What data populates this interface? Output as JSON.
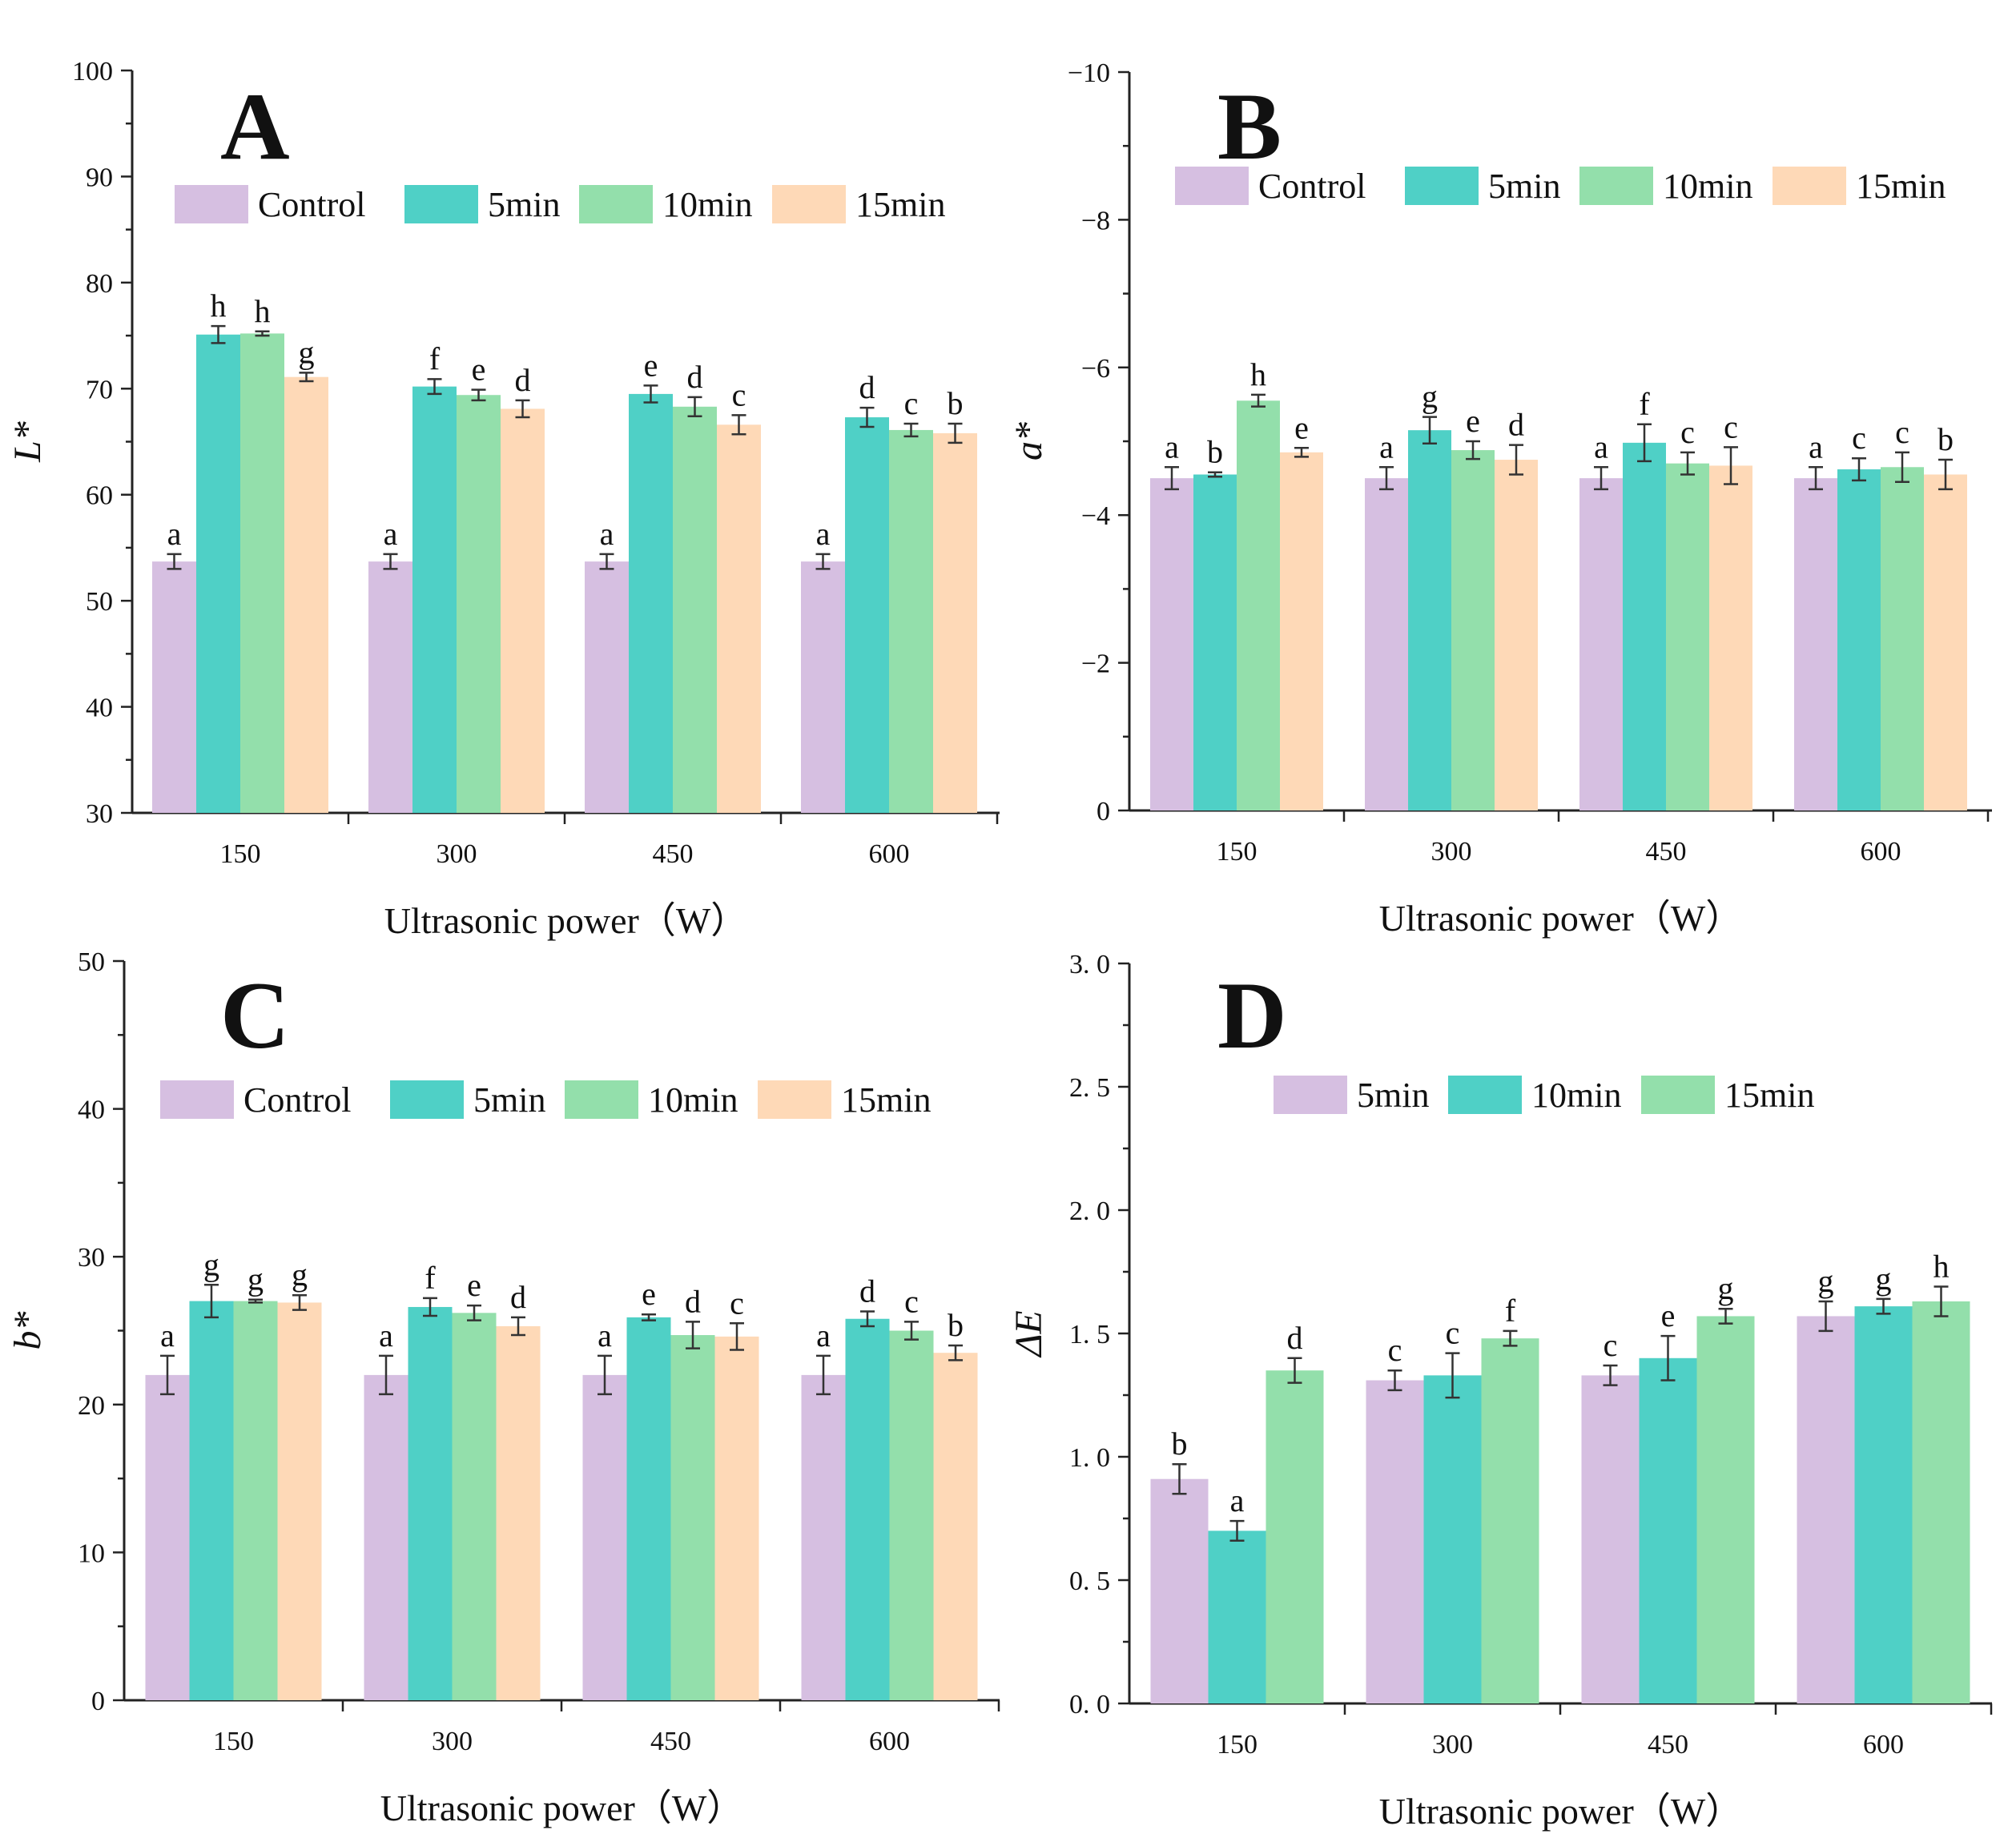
{
  "colors": {
    "Control": "#d6bfe1",
    "5min": "#4fd0c6",
    "10min": "#93dfab",
    "15min": "#fed9b7"
  },
  "chart_data": [
    {
      "type": "bar",
      "panel": "A",
      "title": "A",
      "xlabel": "Ultrasonic power（W）",
      "ylabel": "L*",
      "categories": [
        "150",
        "300",
        "450",
        "600"
      ],
      "ylim": [
        30,
        100
      ],
      "yticks": [
        30,
        40,
        50,
        60,
        70,
        80,
        90,
        100
      ],
      "tick_labels": [
        "30",
        "40",
        "50",
        "60",
        "70",
        "80",
        "90",
        "100"
      ],
      "legend": [
        "Control",
        "5min",
        "10min",
        "15min"
      ],
      "series": [
        {
          "name": "Control",
          "values": [
            53.7,
            53.7,
            53.7,
            53.7
          ],
          "errors": [
            0.7,
            0.7,
            0.7,
            0.7
          ],
          "letters": [
            "a",
            "a",
            "a",
            "a"
          ]
        },
        {
          "name": "5min",
          "values": [
            75.1,
            70.2,
            69.5,
            67.3
          ],
          "errors": [
            0.8,
            0.7,
            0.8,
            0.9
          ],
          "letters": [
            "h",
            "f",
            "e",
            "d"
          ]
        },
        {
          "name": "10min",
          "values": [
            75.2,
            69.4,
            68.3,
            66.1
          ],
          "errors": [
            0.2,
            0.5,
            0.9,
            0.6
          ],
          "letters": [
            "h",
            "e",
            "d",
            "c"
          ]
        },
        {
          "name": "15min",
          "values": [
            71.1,
            68.1,
            66.6,
            65.8
          ],
          "errors": [
            0.4,
            0.8,
            0.9,
            0.9
          ],
          "letters": [
            "g",
            "d",
            "c",
            "b"
          ]
        }
      ]
    },
    {
      "type": "bar",
      "panel": "B",
      "title": "B",
      "xlabel": "Ultrasonic power（W）",
      "ylabel": "a*",
      "categories": [
        "150",
        "300",
        "450",
        "600"
      ],
      "ylim": [
        0,
        -10
      ],
      "yticks": [
        0,
        -2,
        -4,
        -6,
        -8,
        -10
      ],
      "tick_labels": [
        "0",
        "−2",
        "−4",
        "−6",
        "−8",
        "−10"
      ],
      "legend": [
        "Control",
        "5min",
        "10min",
        "15min"
      ],
      "series": [
        {
          "name": "Control",
          "values": [
            -4.5,
            -4.5,
            -4.5,
            -4.5
          ],
          "errors": [
            0.15,
            0.15,
            0.15,
            0.15
          ],
          "letters": [
            "a",
            "a",
            "a",
            "a"
          ]
        },
        {
          "name": "5min",
          "values": [
            -4.55,
            -5.15,
            -4.98,
            -4.62
          ],
          "errors": [
            0.03,
            0.18,
            0.25,
            0.15
          ],
          "letters": [
            "b",
            "g",
            "f",
            "c"
          ]
        },
        {
          "name": "10min",
          "values": [
            -5.55,
            -4.88,
            -4.7,
            -4.65
          ],
          "errors": [
            0.08,
            0.12,
            0.15,
            0.2
          ],
          "letters": [
            "h",
            "e",
            "c",
            "c"
          ]
        },
        {
          "name": "15min",
          "values": [
            -4.85,
            -4.75,
            -4.67,
            -4.55
          ],
          "errors": [
            0.06,
            0.2,
            0.25,
            0.2
          ],
          "letters": [
            "e",
            "d",
            "c",
            "b"
          ]
        }
      ]
    },
    {
      "type": "bar",
      "panel": "C",
      "title": "C",
      "xlabel": "Ultrasonic power（W）",
      "ylabel": "b*",
      "categories": [
        "150",
        "300",
        "450",
        "600"
      ],
      "ylim": [
        0,
        50
      ],
      "yticks": [
        0,
        10,
        20,
        30,
        40,
        50
      ],
      "tick_labels": [
        "0",
        "10",
        "20",
        "30",
        "40",
        "50"
      ],
      "legend": [
        "Control",
        "5min",
        "10min",
        "15min"
      ],
      "series": [
        {
          "name": "Control",
          "values": [
            22.0,
            22.0,
            22.0,
            22.0
          ],
          "errors": [
            1.3,
            1.3,
            1.3,
            1.3
          ],
          "letters": [
            "a",
            "a",
            "a",
            "a"
          ]
        },
        {
          "name": "5min",
          "values": [
            27.0,
            26.6,
            25.9,
            25.8
          ],
          "errors": [
            1.1,
            0.6,
            0.2,
            0.5
          ],
          "letters": [
            "g",
            "f",
            "e",
            "d"
          ]
        },
        {
          "name": "10min",
          "values": [
            27.0,
            26.2,
            24.7,
            25.0
          ],
          "errors": [
            0.1,
            0.5,
            0.9,
            0.6
          ],
          "letters": [
            "g",
            "e",
            "d",
            "c"
          ]
        },
        {
          "name": "15min",
          "values": [
            26.9,
            25.3,
            24.6,
            23.5
          ],
          "errors": [
            0.5,
            0.6,
            0.9,
            0.5
          ],
          "letters": [
            "g",
            "d",
            "c",
            "b"
          ]
        }
      ]
    },
    {
      "type": "bar",
      "panel": "D",
      "title": "D",
      "xlabel": "Ultrasonic power（W）",
      "ylabel": "ΔE",
      "categories": [
        "150",
        "300",
        "450",
        "600"
      ],
      "ylim": [
        0,
        3
      ],
      "yticks": [
        0,
        0.5,
        1,
        1.5,
        2,
        2.5,
        3
      ],
      "tick_labels": [
        "0. 0",
        "0. 5",
        "1. 0",
        "1. 5",
        "2. 0",
        "2. 5",
        "3. 0"
      ],
      "legend": [
        "5min",
        "10min",
        "15min"
      ],
      "series": [
        {
          "name": "5min",
          "color_key": "Control",
          "values": [
            0.91,
            1.31,
            1.33,
            1.57
          ],
          "errors": [
            0.06,
            0.04,
            0.04,
            0.06
          ],
          "letters": [
            "b",
            "c",
            "c",
            "g"
          ]
        },
        {
          "name": "10min",
          "color_key": "5min",
          "values": [
            0.7,
            1.33,
            1.4,
            1.61
          ],
          "errors": [
            0.04,
            0.09,
            0.09,
            0.03
          ],
          "letters": [
            "a",
            "c",
            "e",
            "g"
          ]
        },
        {
          "name": "15min",
          "color_key": "10min",
          "values": [
            1.35,
            1.48,
            1.57,
            1.63
          ],
          "errors": [
            0.05,
            0.03,
            0.03,
            0.06
          ],
          "letters": [
            "d",
            "f",
            "g",
            "h"
          ]
        }
      ]
    }
  ]
}
